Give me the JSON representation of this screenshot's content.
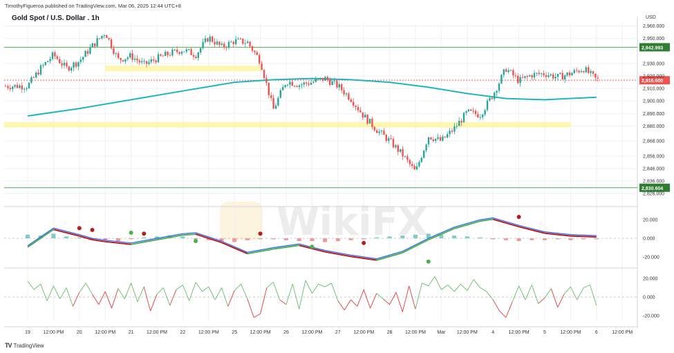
{
  "header": {
    "author_line": "TimothyFigueroa published on TradingView.com, Mar 06, 2025 12:44 UTC+8",
    "title": "Gold Spot / U.S. Dollar . 1h",
    "currency": "USD"
  },
  "brand": {
    "logo": "TV",
    "name": "TradingView"
  },
  "watermark": {
    "text": "WikiFX"
  },
  "colors": {
    "up": "#26a69a",
    "down": "#ef5350",
    "ma_line": "#1fb4c4",
    "level_line": "#4caf50",
    "level_tag": "#2e7d32",
    "zone": "#fff59d",
    "last_price_tag": "#ef5350",
    "macd_line": "#2962ff",
    "signal_up": "#4caf50",
    "signal_down": "#b71c1c",
    "osc_up": "#66bb6a",
    "osc_down": "#e53935",
    "grid": "#eef0f3"
  },
  "chart_data": [
    {
      "type": "candlestick",
      "title": "Gold Spot / U.S. Dollar . 1h",
      "ylim": [
        2820,
        2962
      ],
      "y_ticks": [
        "2,960.000",
        "2,950.000",
        "2,930.000",
        "2,920.000",
        "2,910.000",
        "2,900.000",
        "2,890.000",
        "2,880.000",
        "2,868.000",
        "2,856.000",
        "2,846.000",
        "2,836.000",
        "2,826.000"
      ],
      "y_tick_values": [
        2960,
        2950,
        2930,
        2920,
        2910,
        2900,
        2890,
        2880,
        2868,
        2856,
        2846,
        2836,
        2826
      ],
      "x_ticks": [
        "19",
        "12:00 PM",
        "20",
        "12:00 PM",
        "21",
        "12:00 PM",
        "22",
        "12:00 PM",
        "25",
        "12:00 PM",
        "26",
        "12:00 PM",
        "27",
        "12:00 PM",
        "28",
        "12:00 PM",
        "Mar",
        "12:00 PM",
        "4",
        "12:00 PM",
        "5",
        "12:00 PM",
        "6",
        "12:00 PM"
      ],
      "price_levels": [
        {
          "value": 2942.993,
          "label": "2,942.993"
        },
        {
          "value": 2830.604,
          "label": "2,830.604"
        }
      ],
      "last_price": {
        "value": 2916.6,
        "label": "2,916.600"
      },
      "zones": [
        {
          "from_tick": 3,
          "to_tick": 9,
          "value": 2926
        },
        {
          "from_tick": 0,
          "to_tick": 21,
          "value": 2881
        }
      ],
      "close_path": [
        [
          0,
          2912
        ],
        [
          1,
          2926
        ],
        [
          2,
          2937
        ],
        [
          3,
          2926
        ],
        [
          4,
          2932
        ],
        [
          5,
          2944
        ],
        [
          6,
          2955
        ],
        [
          7,
          2933
        ],
        [
          8,
          2936
        ],
        [
          9,
          2929
        ],
        [
          10,
          2934
        ],
        [
          11,
          2938
        ],
        [
          12,
          2941
        ],
        [
          13,
          2937
        ],
        [
          14,
          2951
        ],
        [
          15,
          2943
        ],
        [
          16,
          2948
        ],
        [
          17,
          2947
        ],
        [
          18,
          2932
        ],
        [
          19,
          2893
        ],
        [
          20,
          2916
        ],
        [
          21,
          2913
        ],
        [
          22,
          2915
        ],
        [
          23,
          2918
        ],
        [
          24,
          2912
        ],
        [
          25,
          2902
        ],
        [
          26,
          2888
        ],
        [
          27,
          2877
        ],
        [
          28,
          2868
        ],
        [
          29,
          2857
        ],
        [
          30,
          2843
        ],
        [
          31,
          2872
        ],
        [
          32,
          2868
        ],
        [
          33,
          2878
        ],
        [
          34,
          2891
        ],
        [
          35,
          2889
        ],
        [
          36,
          2905
        ],
        [
          37,
          2926
        ],
        [
          38,
          2916
        ],
        [
          39,
          2921
        ],
        [
          40,
          2922
        ],
        [
          41,
          2919
        ],
        [
          42,
          2922
        ],
        [
          43,
          2926
        ],
        [
          44,
          2917
        ]
      ],
      "moving_average": [
        [
          0,
          2888
        ],
        [
          4,
          2894
        ],
        [
          8,
          2901
        ],
        [
          12,
          2908
        ],
        [
          16,
          2915
        ],
        [
          19,
          2917
        ],
        [
          22,
          2918
        ],
        [
          25,
          2917
        ],
        [
          28,
          2915
        ],
        [
          31,
          2911
        ],
        [
          34,
          2906
        ],
        [
          37,
          2902
        ],
        [
          40,
          2901
        ],
        [
          44,
          2903
        ]
      ]
    },
    {
      "type": "line",
      "name": "MACD panel",
      "ylim": [
        -26,
        26
      ],
      "y_ticks": [
        "20.000",
        "0.000",
        "-20.000"
      ],
      "y_tick_values": [
        20,
        0,
        -20
      ],
      "series": [
        {
          "values": [
            [
              0,
              -8
            ],
            [
              2,
              11
            ],
            [
              4,
              4
            ],
            [
              5,
              0
            ],
            [
              6,
              -2
            ],
            [
              8,
              -5
            ],
            [
              10,
              0
            ],
            [
              12,
              5
            ],
            [
              13,
              6
            ],
            [
              15,
              -3
            ],
            [
              17,
              -15
            ],
            [
              19,
              -10
            ],
            [
              21,
              -6
            ],
            [
              23,
              -13
            ],
            [
              25,
              -18
            ],
            [
              27,
              -22
            ],
            [
              29,
              -14
            ],
            [
              31,
              0
            ],
            [
              33,
              12
            ],
            [
              35,
              20
            ],
            [
              36,
              22
            ],
            [
              38,
              14
            ],
            [
              40,
              7
            ],
            [
              42,
              4
            ],
            [
              44,
              3
            ]
          ]
        }
      ],
      "histogram": [
        4,
        3,
        5,
        2,
        1,
        -1,
        -2,
        -3,
        -1,
        1,
        2,
        3,
        2,
        -1,
        -2,
        -3,
        -4,
        -2,
        -1,
        -1,
        -2,
        -3,
        -3,
        -4,
        -3,
        -2,
        -1,
        1,
        2,
        3,
        4,
        5,
        4,
        3,
        2,
        1,
        -1,
        -2,
        -3,
        -2,
        -2,
        -1,
        -2,
        -1,
        -1
      ],
      "markers": [
        {
          "x": 4,
          "y": 11,
          "dir": "down"
        },
        {
          "x": 5,
          "y": 9,
          "dir": "down"
        },
        {
          "x": 8,
          "y": 6,
          "dir": "up"
        },
        {
          "x": 9,
          "y": 5,
          "dir": "down"
        },
        {
          "x": 13,
          "y": -3,
          "dir": "up"
        },
        {
          "x": 18,
          "y": 5,
          "dir": "down"
        },
        {
          "x": 22,
          "y": -9,
          "dir": "up"
        },
        {
          "x": 26,
          "y": -5,
          "dir": "down"
        },
        {
          "x": 31,
          "y": -25,
          "dir": "up"
        },
        {
          "x": 38,
          "y": 23,
          "dir": "down"
        }
      ]
    },
    {
      "type": "line",
      "name": "Oscillator panel",
      "ylim": [
        -26,
        26
      ],
      "y_ticks": [
        "20.000",
        "0.000",
        "-20.000"
      ],
      "y_tick_values": [
        20,
        0,
        -20
      ],
      "series": [
        {
          "values": [
            [
              0,
              17
            ],
            [
              0.5,
              8
            ],
            [
              1,
              14
            ],
            [
              1.5,
              -4
            ],
            [
              2,
              12
            ],
            [
              2.5,
              -2
            ],
            [
              3,
              10
            ],
            [
              3.5,
              -10
            ],
            [
              4,
              5
            ],
            [
              4.5,
              15
            ],
            [
              5,
              3
            ],
            [
              5.5,
              -8
            ],
            [
              6,
              6
            ],
            [
              6.5,
              -12
            ],
            [
              7,
              9
            ],
            [
              7.5,
              -2
            ],
            [
              8,
              15
            ],
            [
              8.5,
              -5
            ],
            [
              9,
              11
            ],
            [
              9.5,
              -15
            ],
            [
              10,
              3
            ],
            [
              10.5,
              10
            ],
            [
              11,
              -9
            ],
            [
              11.5,
              8
            ],
            [
              12,
              13
            ],
            [
              12.5,
              -4
            ],
            [
              13,
              16
            ],
            [
              13.5,
              6
            ],
            [
              14,
              11
            ],
            [
              14.5,
              -3
            ],
            [
              15,
              10
            ],
            [
              15.5,
              -10
            ],
            [
              16,
              7
            ],
            [
              16.5,
              14
            ],
            [
              17,
              -2
            ],
            [
              17.5,
              -22
            ],
            [
              18,
              -18
            ],
            [
              18.5,
              10
            ],
            [
              19,
              16
            ],
            [
              19.5,
              -3
            ],
            [
              20,
              -8
            ],
            [
              20.5,
              14
            ],
            [
              21,
              -13
            ],
            [
              21.5,
              18
            ],
            [
              22,
              4
            ],
            [
              22.5,
              14
            ],
            [
              23,
              11
            ],
            [
              23.5,
              15
            ],
            [
              24,
              -4
            ],
            [
              24.5,
              -14
            ],
            [
              25,
              -3
            ],
            [
              25.5,
              -10
            ],
            [
              26,
              8
            ],
            [
              26.5,
              -12
            ],
            [
              27,
              4
            ],
            [
              27.5,
              -2
            ],
            [
              28,
              -8
            ],
            [
              28.5,
              5
            ],
            [
              29,
              -16
            ],
            [
              29.5,
              12
            ],
            [
              30,
              -13
            ],
            [
              30.5,
              15
            ],
            [
              31,
              12
            ],
            [
              31.5,
              22
            ],
            [
              32,
              8
            ],
            [
              32.5,
              13
            ],
            [
              33,
              6
            ],
            [
              33.5,
              14
            ],
            [
              34,
              7
            ],
            [
              34.5,
              19
            ],
            [
              35,
              10
            ],
            [
              35.5,
              6
            ],
            [
              36,
              -3
            ],
            [
              36.5,
              -15
            ],
            [
              37,
              -22
            ],
            [
              37.5,
              -5
            ],
            [
              38,
              12
            ],
            [
              38.5,
              -3
            ],
            [
              39,
              13
            ],
            [
              39.5,
              -7
            ],
            [
              40,
              -1
            ],
            [
              40.5,
              9
            ],
            [
              41,
              -11
            ],
            [
              41.5,
              3
            ],
            [
              42,
              11
            ],
            [
              42.5,
              -3
            ],
            [
              43,
              10
            ],
            [
              43.5,
              13
            ],
            [
              44,
              -9
            ]
          ]
        }
      ]
    }
  ]
}
